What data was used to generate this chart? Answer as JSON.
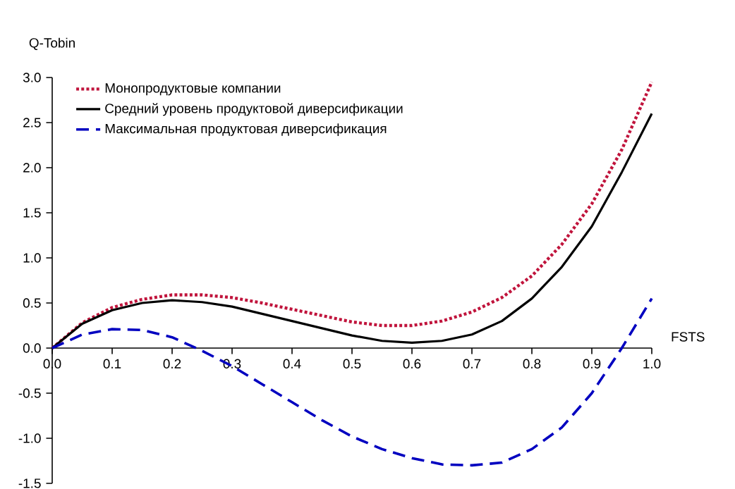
{
  "chart_data": {
    "type": "line",
    "xlabel": "FSTS",
    "ylabel": "Q-Tobin",
    "x": [
      0,
      0.05,
      0.1,
      0.15,
      0.2,
      0.25,
      0.3,
      0.35,
      0.4,
      0.45,
      0.5,
      0.55,
      0.6,
      0.65,
      0.7,
      0.75,
      0.8,
      0.85,
      0.9,
      0.95,
      1.0
    ],
    "series": [
      {
        "name": "Монопродуктовые компании",
        "color": "#c0143c",
        "line_style": "dotted",
        "values": [
          0,
          0.28,
          0.45,
          0.54,
          0.59,
          0.59,
          0.56,
          0.5,
          0.43,
          0.36,
          0.29,
          0.25,
          0.25,
          0.3,
          0.4,
          0.56,
          0.8,
          1.15,
          1.6,
          2.2,
          2.95
        ]
      },
      {
        "name": "Средний уровень продуктовой диверсификации",
        "color": "#000000",
        "line_style": "solid",
        "values": [
          0,
          0.27,
          0.42,
          0.5,
          0.53,
          0.51,
          0.46,
          0.38,
          0.3,
          0.22,
          0.14,
          0.08,
          0.06,
          0.08,
          0.15,
          0.3,
          0.55,
          0.9,
          1.35,
          1.95,
          2.6
        ]
      },
      {
        "name": "Максимальная продуктовая диверсификация",
        "color": "#0000c0",
        "line_style": "dashed",
        "values": [
          0,
          0.15,
          0.21,
          0.2,
          0.12,
          -0.03,
          -0.2,
          -0.4,
          -0.6,
          -0.8,
          -0.98,
          -1.12,
          -1.22,
          -1.29,
          -1.3,
          -1.27,
          -1.12,
          -0.88,
          -0.5,
          0.0,
          0.55
        ]
      }
    ],
    "xlim": [
      0,
      1.0
    ],
    "ylim": [
      -1.5,
      3.0
    ],
    "xticks": [
      {
        "value": 0,
        "label": "0.0"
      },
      0.1,
      0.2,
      0.3,
      0.4,
      0.5,
      0.6,
      0.7,
      0.8,
      0.9,
      {
        "value": 1.0,
        "label": "1.0"
      }
    ],
    "yticks": [
      {
        "value": -1.5,
        "label": "-1.5"
      },
      {
        "value": -1.0,
        "label": "-1.0"
      },
      -0.5,
      {
        "value": 0,
        "label": "0.0"
      },
      0.5,
      {
        "value": 1.0,
        "label": "1.0"
      },
      1.5,
      {
        "value": 2.0,
        "label": "2.0"
      },
      2.5,
      {
        "value": 3.0,
        "label": "3.0"
      }
    ],
    "legend": "top left"
  }
}
